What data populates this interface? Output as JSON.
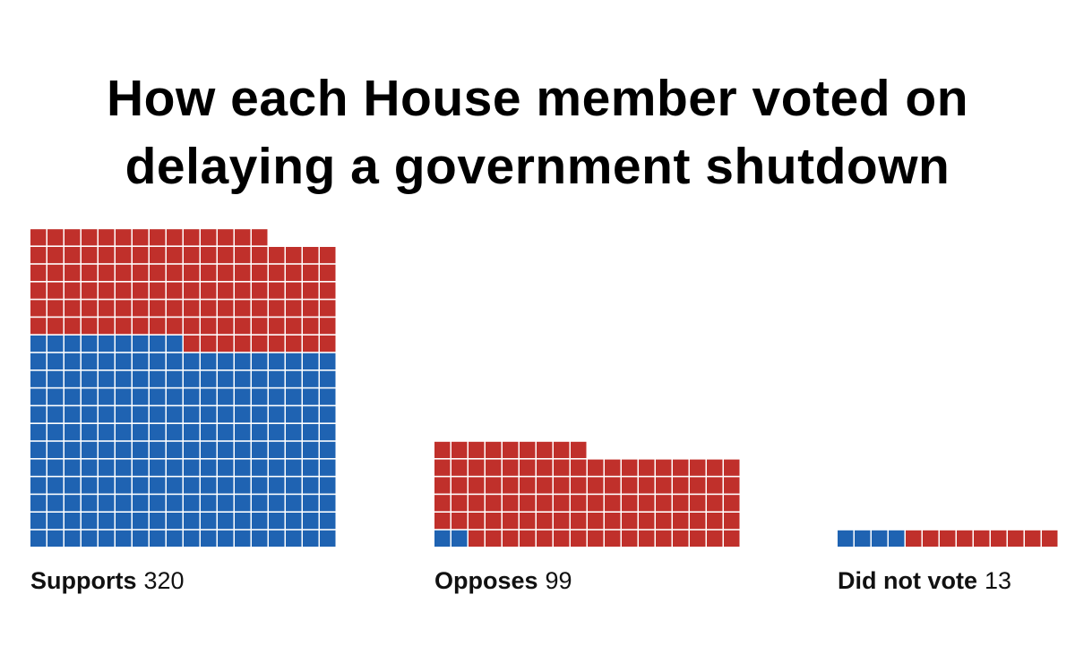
{
  "chart_data": {
    "type": "waffle",
    "title": "How each House member voted on delaying a government shutdown",
    "categories": [
      "Supports",
      "Opposes",
      "Did not vote"
    ],
    "totals": [
      320,
      99,
      13
    ],
    "columns": 18,
    "series": [
      {
        "color": "#1f63b2",
        "values": [
          207,
          2,
          4
        ]
      },
      {
        "color": "#c0302b",
        "values": [
          113,
          97,
          9
        ]
      }
    ]
  }
}
